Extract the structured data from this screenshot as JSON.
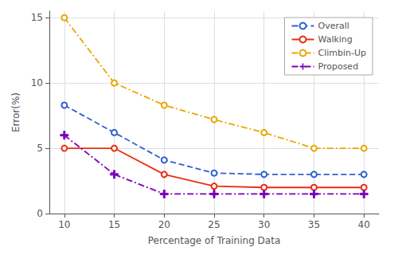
{
  "chart_data": {
    "type": "line",
    "x": [
      10,
      15,
      20,
      25,
      30,
      35,
      40
    ],
    "series": [
      {
        "name": "Overall",
        "color": "#3060d0",
        "values": [
          8.3,
          6.2,
          4.1,
          3.1,
          3.0,
          3.0,
          3.0
        ],
        "marker": "circle",
        "line_style": "dashed"
      },
      {
        "name": "Walking",
        "color": "#e83010",
        "values": [
          5.0,
          5.0,
          3.0,
          2.1,
          2.0,
          2.0,
          2.0
        ],
        "marker": "circle",
        "line_style": "solid"
      },
      {
        "name": "Climbin-Up",
        "color": "#e8a800",
        "values": [
          15.0,
          10.0,
          8.3,
          7.2,
          6.2,
          5.0,
          5.0
        ],
        "marker": "circle",
        "line_style": "dashdot"
      },
      {
        "name": "Proposed",
        "color": "#7b00b8",
        "values": [
          6.0,
          3.0,
          1.5,
          1.5,
          1.5,
          1.5,
          1.5
        ],
        "marker": "plus",
        "line_style": "dashdot"
      }
    ],
    "x_label": "Percentage of Training Data",
    "y_label": "Error(%)",
    "xlim": [
      8.5,
      41.5
    ],
    "ylim": [
      0,
      15.5
    ],
    "xticks": [
      10,
      15,
      20,
      25,
      30,
      35,
      40
    ],
    "yticks": [
      0,
      5,
      10,
      15
    ],
    "grid": true,
    "legend": "upper right"
  }
}
